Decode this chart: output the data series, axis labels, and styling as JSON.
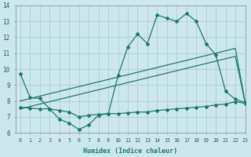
{
  "xlabel": "Humidex (Indice chaleur)",
  "xlim": [
    -0.5,
    23
  ],
  "ylim": [
    6,
    14
  ],
  "yticks": [
    6,
    7,
    8,
    9,
    10,
    11,
    12,
    13,
    14
  ],
  "xticks": [
    0,
    1,
    2,
    3,
    4,
    5,
    6,
    7,
    8,
    9,
    10,
    11,
    12,
    13,
    14,
    15,
    16,
    17,
    18,
    19,
    20,
    21,
    22,
    23
  ],
  "bg_color": "#cde8ec",
  "grid_color": "#a8cdd4",
  "line_color": "#1a7a6e",
  "line1": [
    9.7,
    8.2,
    8.15,
    7.5,
    6.85,
    6.6,
    6.2,
    6.5,
    7.1,
    7.2,
    9.6,
    11.4,
    12.2,
    11.6,
    13.4,
    13.2,
    13.0,
    13.5,
    13.0,
    11.6,
    10.9,
    8.6,
    8.1,
    7.9
  ],
  "line2a": [
    8.0,
    8.15,
    8.3,
    8.45,
    8.6,
    8.75,
    8.9,
    9.05,
    9.2,
    9.35,
    9.5,
    9.65,
    9.8,
    9.95,
    10.1,
    10.25,
    10.4,
    10.55,
    10.7,
    10.85,
    11.0,
    11.15,
    11.3,
    7.9
  ],
  "line2b": [
    7.5,
    7.65,
    7.8,
    7.95,
    8.1,
    8.25,
    8.4,
    8.55,
    8.7,
    8.85,
    9.0,
    9.15,
    9.3,
    9.45,
    9.6,
    9.75,
    9.9,
    10.05,
    10.2,
    10.35,
    10.5,
    10.65,
    10.8,
    7.9
  ],
  "line3": [
    7.6,
    7.55,
    7.5,
    7.5,
    7.4,
    7.3,
    7.0,
    7.1,
    7.15,
    7.2,
    7.2,
    7.25,
    7.3,
    7.3,
    7.4,
    7.45,
    7.5,
    7.55,
    7.6,
    7.65,
    7.75,
    7.8,
    7.95,
    7.85
  ]
}
